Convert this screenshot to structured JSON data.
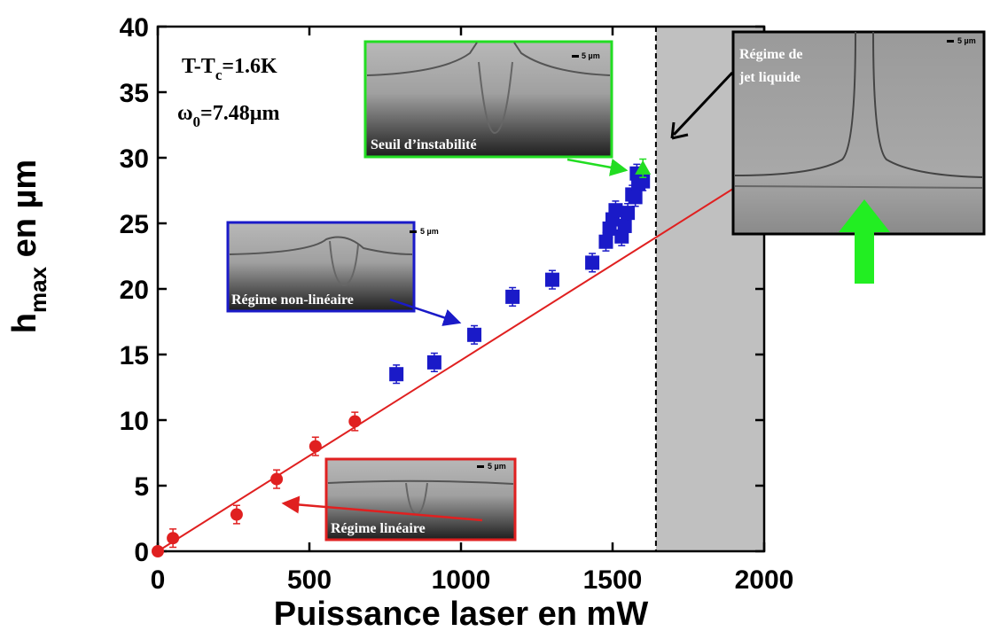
{
  "chart_data": {
    "type": "scatter",
    "xlabel": "Puissance laser en mW",
    "ylabel": {
      "main": "h",
      "sub": "max",
      "rest": " en µm"
    },
    "xlim": [
      0,
      2000
    ],
    "ylim": [
      0,
      40
    ],
    "xticks": [
      0,
      500,
      1000,
      1500,
      2000
    ],
    "yticks": [
      0,
      5,
      10,
      15,
      20,
      25,
      30,
      35,
      40
    ],
    "shaded_from": 1643,
    "series": [
      {
        "color": "#e02020",
        "marker": "circle",
        "x": [
          0,
          50,
          260,
          392,
          520,
          650
        ],
        "values": [
          0,
          1.0,
          2.8,
          5.5,
          8.0,
          9.9
        ],
        "errors": [
          0.3,
          0.7,
          0.7,
          0.7,
          0.7,
          0.7
        ]
      },
      {
        "color": "#1a1ac8",
        "marker": "square",
        "x": [
          787,
          912,
          1044,
          1170,
          1301,
          1433,
          1478,
          1490,
          1500,
          1510,
          1530,
          1540,
          1550,
          1565,
          1575,
          1585,
          1600,
          1580
        ],
        "values": [
          13.5,
          14.4,
          16.5,
          19.4,
          20.7,
          22.0,
          23.6,
          24.6,
          25.3,
          26.0,
          24.0,
          24.8,
          25.8,
          27.2,
          27.0,
          28.0,
          28.2,
          28.8
        ],
        "errors": [
          0.7,
          0.7,
          0.7,
          0.7,
          0.7,
          0.7,
          0.7,
          0.7,
          0.7,
          0.7,
          0.7,
          0.7,
          0.7,
          0.7,
          0.7,
          0.7,
          0.7,
          0.7
        ]
      },
      {
        "color": "#22dd22",
        "marker": "triangle",
        "x": [
          1600
        ],
        "values": [
          29.2
        ],
        "errors": [
          0.7
        ]
      },
      {
        "color": "#e02020",
        "marker": "none",
        "x": [
          0,
          1895
        ],
        "values": [
          0,
          27.6
        ]
      }
    ]
  },
  "annotations": {
    "temperature": {
      "main": "T-T",
      "sub": "c",
      "rest": "=1.6K"
    },
    "waist": {
      "main": "ω",
      "sub": "0",
      "rest": "=7.48µm"
    }
  },
  "insets": [
    {
      "label": "Seuil d’instabilité",
      "scale": "5 µm"
    },
    {
      "label": "Régime non-linéaire",
      "scale": "5 µm"
    },
    {
      "label": "Régime linéaire",
      "scale": "5 µm"
    },
    {
      "label": [
        "Régime de",
        "jet liquide"
      ],
      "scale": "5 µm"
    }
  ]
}
